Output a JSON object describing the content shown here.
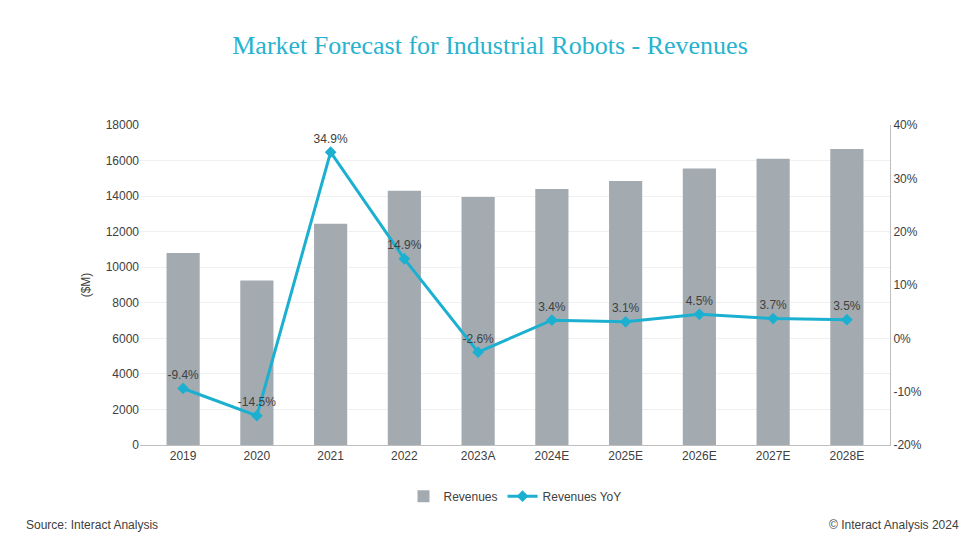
{
  "chart_data": {
    "type": "bar",
    "title": "Market Forecast for Industrial Robots - Revenues",
    "y_label": "($M)",
    "annotations": [
      "Source: Interact Analysis",
      "© Interact Analysis 2024"
    ],
    "categories": [
      "2019",
      "2020",
      "2021",
      "2022",
      "2023A",
      "2024E",
      "2025E",
      "2026E",
      "2027E",
      "2028E"
    ],
    "series": [
      {
        "name": "Revenues",
        "type": "bar",
        "color": "#a3abb1",
        "values": [
          10800,
          9250,
          12450,
          14300,
          13950,
          14400,
          14850,
          15550,
          16100,
          16650
        ]
      },
      {
        "name": "Revenues YoY",
        "type": "line",
        "axis": "y2",
        "color": "#1cb0d0",
        "marker": "diamond",
        "data_labels": true,
        "values": [
          -9.4,
          -14.5,
          34.9,
          14.9,
          -2.6,
          3.4,
          3.1,
          4.5,
          3.7,
          3.5
        ],
        "value_labels": [
          "-9.4%",
          "-14.5%",
          "34.9%",
          "14.9%",
          "-2.6%",
          "3.4%",
          "3.1%",
          "4.5%",
          "3.7%",
          "3.5%"
        ]
      }
    ],
    "ylim": [
      0,
      18000
    ],
    "yticks": [
      0,
      2000,
      4000,
      6000,
      8000,
      10000,
      12000,
      14000,
      16000,
      18000
    ],
    "y2lim": [
      -20,
      40
    ],
    "y2ticks": [
      {
        "value": -20,
        "label": "-20%"
      },
      {
        "value": -10,
        "label": "-10%"
      },
      {
        "value": 0,
        "label": "0%"
      },
      {
        "value": 10,
        "label": "10%"
      },
      {
        "value": 20,
        "label": "20%"
      },
      {
        "value": 30,
        "label": "30%"
      },
      {
        "value": 40,
        "label": "40%"
      }
    ],
    "grid": true,
    "legend": "bottom"
  }
}
